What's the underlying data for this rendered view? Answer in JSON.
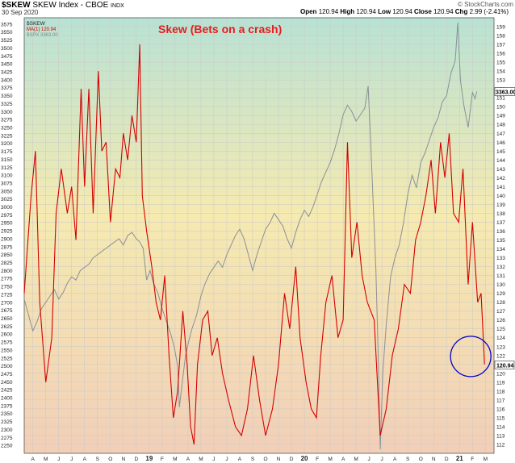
{
  "header": {
    "symbol": "$SKEW",
    "name": "SKEW Index - CBOE",
    "exchange": "INDX",
    "date": "30 Sep 2020",
    "credit": "© StockCharts.com",
    "open_label": "Open",
    "open": "120.94",
    "high_label": "High",
    "high": "120.94",
    "low_label": "Low",
    "low": "120.94",
    "close_label": "Close",
    "close": "120.94",
    "chg_label": "Chg",
    "chg": "2.99 (-2.41%)"
  },
  "legend": {
    "symbol": "$SKEW",
    "ma": "MA(1) 120.94",
    "spx": "$SPX 3363.00"
  },
  "annotation": "Skew (Bets on a crash)",
  "colors": {
    "skew": "#d40000",
    "spx": "#8a9099",
    "circle": "#0000cc",
    "bg_top": "#b8e2d4",
    "bg_mid": "#f5eab0",
    "bg_bottom": "#f2cfb8"
  },
  "chart_data": {
    "type": "line",
    "ylim_left": [
      2225,
      3595
    ],
    "ylim_right": [
      111,
      160
    ],
    "left_ticks": [
      2250,
      2275,
      2300,
      2325,
      2350,
      2375,
      2400,
      2425,
      2450,
      2475,
      2500,
      2525,
      2550,
      2575,
      2600,
      2625,
      2650,
      2675,
      2700,
      2725,
      2750,
      2775,
      2800,
      2825,
      2850,
      2875,
      2900,
      2925,
      2950,
      2975,
      3000,
      3025,
      3050,
      3075,
      3100,
      3125,
      3150,
      3175,
      3200,
      3225,
      3250,
      3275,
      3300,
      3325,
      3350,
      3375,
      3400,
      3425,
      3450,
      3475,
      3500,
      3525,
      3550,
      3575
    ],
    "right_ticks": [
      112,
      113,
      114,
      115,
      116,
      117,
      118,
      119,
      120,
      121,
      122,
      123,
      124,
      125,
      126,
      127,
      128,
      129,
      130,
      131,
      132,
      133,
      134,
      135,
      136,
      137,
      138,
      139,
      140,
      141,
      142,
      143,
      144,
      145,
      146,
      147,
      148,
      149,
      150,
      151,
      152,
      153,
      154,
      155,
      156,
      157,
      158,
      159
    ],
    "right_value_badge": "120.94",
    "left_value_badge": "3363.00",
    "x_labels": [
      "A",
      "M",
      "J",
      "J",
      "A",
      "S",
      "O",
      "N",
      "D",
      "19",
      "F",
      "M",
      "A",
      "M",
      "J",
      "J",
      "A",
      "S",
      "O",
      "N",
      "D",
      "20",
      "F",
      "M",
      "A",
      "M",
      "J",
      "J",
      "A",
      "S",
      "O",
      "N",
      "D",
      "21",
      "F",
      "M"
    ],
    "x_label_bold": [
      "19",
      "20",
      "21"
    ],
    "grid": true,
    "series": [
      {
        "name": "$SKEW",
        "axis": "right",
        "points": [
          [
            0,
            129
          ],
          [
            0.8,
            140
          ],
          [
            1.3,
            145
          ],
          [
            1.8,
            128
          ],
          [
            2.5,
            119
          ],
          [
            3.2,
            124
          ],
          [
            3.7,
            138
          ],
          [
            4.3,
            143
          ],
          [
            5.0,
            138
          ],
          [
            5.5,
            141
          ],
          [
            6.0,
            135
          ],
          [
            6.6,
            152
          ],
          [
            7.0,
            141
          ],
          [
            7.5,
            152
          ],
          [
            8.0,
            138
          ],
          [
            8.6,
            154
          ],
          [
            9.0,
            145
          ],
          [
            9.5,
            146
          ],
          [
            10.0,
            137
          ],
          [
            10.6,
            143
          ],
          [
            11.1,
            142
          ],
          [
            11.5,
            147
          ],
          [
            12.0,
            144
          ],
          [
            12.5,
            149
          ],
          [
            13.0,
            146
          ],
          [
            13.4,
            157
          ],
          [
            13.7,
            140
          ],
          [
            14.2,
            136
          ],
          [
            14.8,
            132
          ],
          [
            15.3,
            128
          ],
          [
            15.8,
            126
          ],
          [
            16.3,
            131
          ],
          [
            16.8,
            122
          ],
          [
            17.3,
            115
          ],
          [
            17.8,
            118
          ],
          [
            18.4,
            127
          ],
          [
            18.9,
            121
          ],
          [
            19.3,
            114
          ],
          [
            19.7,
            112
          ],
          [
            20.1,
            121
          ],
          [
            20.7,
            126
          ],
          [
            21.3,
            127
          ],
          [
            21.8,
            122
          ],
          [
            22.4,
            124
          ],
          [
            23.0,
            120
          ],
          [
            23.7,
            117
          ],
          [
            24.5,
            114
          ],
          [
            25.2,
            113
          ],
          [
            25.9,
            116
          ],
          [
            26.6,
            122
          ],
          [
            27.3,
            117
          ],
          [
            28.0,
            113
          ],
          [
            28.8,
            116
          ],
          [
            29.5,
            121
          ],
          [
            30.2,
            129
          ],
          [
            30.8,
            125
          ],
          [
            31.5,
            132
          ],
          [
            32.0,
            124
          ],
          [
            32.7,
            119
          ],
          [
            33.3,
            116
          ],
          [
            33.9,
            115
          ],
          [
            34.4,
            122
          ],
          [
            35.0,
            128
          ],
          [
            35.7,
            131
          ],
          [
            36.4,
            124
          ],
          [
            37.0,
            126
          ],
          [
            37.5,
            146
          ],
          [
            38.0,
            133
          ],
          [
            38.6,
            137
          ],
          [
            39.2,
            131
          ],
          [
            39.8,
            128
          ],
          [
            40.6,
            126
          ],
          [
            41.3,
            113
          ],
          [
            42.0,
            116
          ],
          [
            42.7,
            122
          ],
          [
            43.4,
            125
          ],
          [
            44.1,
            130
          ],
          [
            44.8,
            129
          ],
          [
            45.4,
            135
          ],
          [
            46.0,
            137
          ],
          [
            46.6,
            140
          ],
          [
            47.2,
            144
          ],
          [
            47.7,
            138
          ],
          [
            48.3,
            146
          ],
          [
            48.8,
            142
          ],
          [
            49.3,
            147
          ],
          [
            49.8,
            138
          ],
          [
            50.4,
            137
          ],
          [
            50.9,
            143
          ],
          [
            51.5,
            130
          ],
          [
            52.0,
            137
          ],
          [
            52.6,
            128
          ],
          [
            53.0,
            129
          ],
          [
            53.4,
            121
          ]
        ]
      },
      {
        "name": "$SPX",
        "axis": "left",
        "points": [
          [
            0,
            2710
          ],
          [
            0.5,
            2660
          ],
          [
            1.0,
            2610
          ],
          [
            1.5,
            2640
          ],
          [
            2.0,
            2680
          ],
          [
            2.5,
            2700
          ],
          [
            3.0,
            2720
          ],
          [
            3.5,
            2740
          ],
          [
            4.0,
            2710
          ],
          [
            4.5,
            2730
          ],
          [
            5.0,
            2760
          ],
          [
            5.5,
            2780
          ],
          [
            6.0,
            2770
          ],
          [
            6.5,
            2800
          ],
          [
            7.0,
            2810
          ],
          [
            7.5,
            2820
          ],
          [
            8.0,
            2840
          ],
          [
            8.5,
            2850
          ],
          [
            9.0,
            2860
          ],
          [
            9.5,
            2870
          ],
          [
            10.0,
            2880
          ],
          [
            10.5,
            2890
          ],
          [
            11.0,
            2900
          ],
          [
            11.5,
            2880
          ],
          [
            12.0,
            2910
          ],
          [
            12.5,
            2920
          ],
          [
            13.0,
            2900
          ],
          [
            13.4,
            2890
          ],
          [
            13.8,
            2870
          ],
          [
            14.2,
            2770
          ],
          [
            14.6,
            2800
          ],
          [
            15.0,
            2760
          ],
          [
            15.5,
            2730
          ],
          [
            16.0,
            2680
          ],
          [
            16.5,
            2640
          ],
          [
            17.0,
            2600
          ],
          [
            17.4,
            2560
          ],
          [
            17.8,
            2500
          ],
          [
            18.0,
            2370
          ],
          [
            18.3,
            2440
          ],
          [
            18.7,
            2530
          ],
          [
            19.1,
            2580
          ],
          [
            19.5,
            2620
          ],
          [
            20.0,
            2660
          ],
          [
            20.5,
            2720
          ],
          [
            21.0,
            2760
          ],
          [
            21.5,
            2790
          ],
          [
            22.0,
            2810
          ],
          [
            22.5,
            2830
          ],
          [
            23.0,
            2810
          ],
          [
            23.5,
            2850
          ],
          [
            24.0,
            2880
          ],
          [
            24.5,
            2910
          ],
          [
            25.0,
            2930
          ],
          [
            25.5,
            2900
          ],
          [
            26.0,
            2850
          ],
          [
            26.5,
            2800
          ],
          [
            27.0,
            2850
          ],
          [
            27.5,
            2890
          ],
          [
            28.0,
            2930
          ],
          [
            28.5,
            2950
          ],
          [
            29.0,
            2980
          ],
          [
            29.5,
            2960
          ],
          [
            30.0,
            2940
          ],
          [
            30.5,
            2900
          ],
          [
            31.0,
            2870
          ],
          [
            31.5,
            2920
          ],
          [
            32.0,
            2960
          ],
          [
            32.5,
            2990
          ],
          [
            33.0,
            2970
          ],
          [
            33.5,
            3000
          ],
          [
            34.0,
            3040
          ],
          [
            34.5,
            3080
          ],
          [
            35.0,
            3110
          ],
          [
            35.5,
            3140
          ],
          [
            36.0,
            3180
          ],
          [
            36.5,
            3230
          ],
          [
            37.0,
            3290
          ],
          [
            37.5,
            3320
          ],
          [
            38.0,
            3300
          ],
          [
            38.5,
            3270
          ],
          [
            39.0,
            3290
          ],
          [
            39.5,
            3310
          ],
          [
            39.9,
            3380
          ],
          [
            40.2,
            3200
          ],
          [
            40.5,
            3000
          ],
          [
            40.8,
            2800
          ],
          [
            41.1,
            2500
          ],
          [
            41.3,
            2237
          ],
          [
            41.6,
            2480
          ],
          [
            42.0,
            2630
          ],
          [
            42.5,
            2780
          ],
          [
            43.0,
            2840
          ],
          [
            43.5,
            2880
          ],
          [
            44.0,
            2950
          ],
          [
            44.5,
            3040
          ],
          [
            45.0,
            3100
          ],
          [
            45.5,
            3060
          ],
          [
            46.0,
            3140
          ],
          [
            46.5,
            3170
          ],
          [
            47.0,
            3210
          ],
          [
            47.5,
            3250
          ],
          [
            48.0,
            3280
          ],
          [
            48.5,
            3330
          ],
          [
            49.0,
            3350
          ],
          [
            49.5,
            3420
          ],
          [
            50.0,
            3460
          ],
          [
            50.3,
            3580
          ],
          [
            50.6,
            3400
          ],
          [
            51.0,
            3320
          ],
          [
            51.5,
            3250
          ],
          [
            52.0,
            3360
          ],
          [
            52.3,
            3340
          ],
          [
            52.5,
            3363
          ]
        ]
      }
    ],
    "marker_circle": {
      "x": 51.8,
      "y": 121.9,
      "axis": "right"
    }
  }
}
